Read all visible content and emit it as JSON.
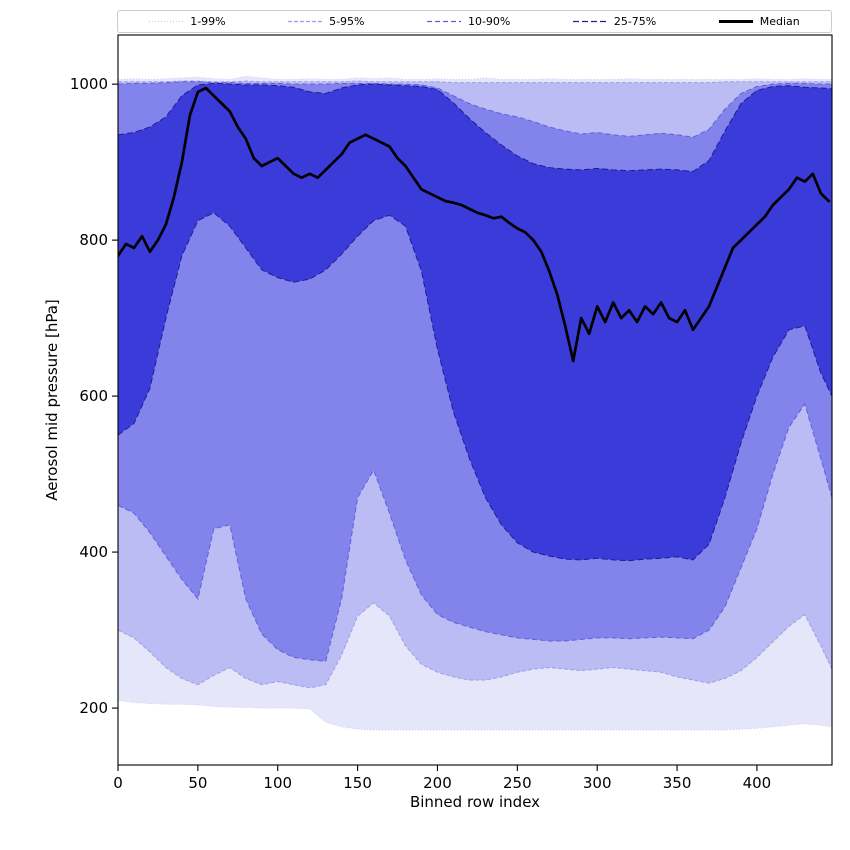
{
  "chart_data": {
    "type": "area",
    "title": "",
    "xlabel": "Binned row index",
    "ylabel": "Aerosol mid pressure [hPa]",
    "xlim": [
      0,
      447
    ],
    "ylim": [
      127,
      1063
    ],
    "xticks": [
      0,
      50,
      100,
      150,
      200,
      250,
      300,
      350,
      400
    ],
    "yticks": [
      200,
      400,
      600,
      800,
      1000
    ],
    "grid": false,
    "legend_position": "top",
    "x": [
      0,
      10,
      20,
      30,
      40,
      50,
      60,
      70,
      80,
      90,
      100,
      110,
      120,
      130,
      140,
      150,
      160,
      170,
      180,
      190,
      200,
      210,
      220,
      230,
      240,
      250,
      260,
      270,
      280,
      290,
      300,
      310,
      320,
      330,
      340,
      350,
      360,
      370,
      380,
      390,
      400,
      410,
      420,
      430,
      440,
      447
    ],
    "series": {
      "p01": [
        210,
        207,
        206,
        205,
        205,
        204,
        202,
        201,
        201,
        200,
        200,
        200,
        199,
        182,
        176,
        173,
        172,
        172,
        172,
        172,
        172,
        172,
        172,
        172,
        172,
        172,
        172,
        172,
        172,
        172,
        172,
        172,
        172,
        172,
        172,
        172,
        172,
        172,
        172,
        173,
        174,
        176,
        178,
        180,
        178,
        176
      ],
      "p05": [
        300,
        290,
        272,
        252,
        238,
        230,
        242,
        252,
        238,
        230,
        234,
        230,
        226,
        230,
        268,
        318,
        335,
        318,
        280,
        256,
        246,
        240,
        236,
        236,
        240,
        246,
        250,
        252,
        250,
        248,
        250,
        252,
        250,
        248,
        246,
        240,
        236,
        232,
        238,
        248,
        265,
        285,
        305,
        320,
        280,
        250
      ],
      "p10": [
        460,
        450,
        425,
        395,
        365,
        340,
        430,
        435,
        340,
        295,
        275,
        265,
        262,
        260,
        340,
        470,
        505,
        450,
        390,
        345,
        320,
        310,
        304,
        298,
        294,
        290,
        288,
        286,
        286,
        288,
        290,
        290,
        289,
        290,
        291,
        290,
        289,
        300,
        330,
        380,
        430,
        500,
        560,
        590,
        520,
        470
      ],
      "p25": [
        550,
        565,
        610,
        700,
        780,
        825,
        835,
        818,
        790,
        762,
        752,
        746,
        750,
        762,
        782,
        805,
        825,
        832,
        818,
        760,
        660,
        580,
        520,
        470,
        435,
        412,
        400,
        395,
        391,
        390,
        392,
        390,
        389,
        391,
        392,
        394,
        390,
        410,
        470,
        540,
        600,
        650,
        685,
        690,
        630,
        600
      ],
      "p75": [
        935,
        938,
        945,
        958,
        985,
        999,
        1001,
        1000,
        999,
        999,
        998,
        996,
        990,
        988,
        995,
        999,
        1000,
        999,
        998,
        997,
        993,
        976,
        956,
        938,
        922,
        908,
        898,
        893,
        891,
        890,
        892,
        890,
        889,
        890,
        891,
        890,
        888,
        902,
        940,
        975,
        992,
        997,
        998,
        996,
        995,
        994
      ],
      "p90": [
        1000,
        1001,
        1001,
        1002,
        1003,
        1003,
        1002,
        1002,
        1001,
        1001,
        1001,
        1000,
        1000,
        1000,
        1001,
        1001,
        1001,
        1000,
        1000,
        999,
        995,
        985,
        975,
        968,
        962,
        958,
        952,
        945,
        940,
        936,
        938,
        935,
        933,
        935,
        937,
        935,
        932,
        942,
        968,
        988,
        997,
        1000,
        1001,
        1001,
        1000,
        1000
      ],
      "p95": [
        1003,
        1003,
        1003,
        1003,
        1004,
        1004,
        1003,
        1003,
        1004,
        1003,
        1003,
        1003,
        1003,
        1003,
        1003,
        1004,
        1003,
        1003,
        1003,
        1003,
        1003,
        1002,
        1002,
        1002,
        1002,
        1002,
        1002,
        1002,
        1002,
        1002,
        1002,
        1002,
        1002,
        1002,
        1002,
        1002,
        1002,
        1002,
        1003,
        1003,
        1003,
        1003,
        1003,
        1003,
        1003,
        1003
      ],
      "p99": [
        1006,
        1007,
        1006,
        1007,
        1008,
        1009,
        1007,
        1006,
        1010,
        1008,
        1006,
        1006,
        1007,
        1006,
        1006,
        1008,
        1007,
        1008,
        1006,
        1006,
        1007,
        1006,
        1006,
        1008,
        1006,
        1006,
        1006,
        1007,
        1006,
        1006,
        1006,
        1006,
        1007,
        1006,
        1006,
        1006,
        1006,
        1006,
        1006,
        1006,
        1007,
        1006,
        1006,
        1007,
        1006,
        1006
      ]
    },
    "bands": [
      {
        "label": "1-99%",
        "lower": "p01",
        "upper": "p99",
        "fill": "#e6e6fa",
        "edge": "#c9c9ee",
        "dash": "1,2"
      },
      {
        "label": "5-95%",
        "lower": "p05",
        "upper": "p95",
        "fill": "#bcbcf4",
        "edge": "#9d9de6",
        "dash": "4,2"
      },
      {
        "label": "10-90%",
        "lower": "p10",
        "upper": "p90",
        "fill": "#8383ec",
        "edge": "#5e5ee0",
        "dash": "5,3"
      },
      {
        "label": "25-75%",
        "lower": "p25",
        "upper": "p75",
        "fill": "#3b3bda",
        "edge": "#1d1d94",
        "dash": "6,3"
      }
    ],
    "median": {
      "label": "Median",
      "color": "#000000",
      "width": 2.7,
      "x": [
        0,
        5,
        10,
        15,
        20,
        25,
        30,
        35,
        40,
        45,
        50,
        55,
        60,
        65,
        70,
        75,
        80,
        85,
        90,
        95,
        100,
        105,
        110,
        115,
        120,
        125,
        130,
        135,
        140,
        145,
        150,
        155,
        160,
        165,
        170,
        175,
        180,
        185,
        190,
        195,
        200,
        205,
        210,
        215,
        220,
        225,
        230,
        235,
        240,
        245,
        250,
        255,
        260,
        265,
        270,
        275,
        280,
        285,
        290,
        295,
        300,
        305,
        310,
        315,
        320,
        325,
        330,
        335,
        340,
        345,
        350,
        355,
        360,
        365,
        370,
        375,
        380,
        385,
        390,
        395,
        400,
        405,
        410,
        415,
        420,
        425,
        430,
        435,
        440,
        445
      ],
      "values": [
        780,
        795,
        790,
        805,
        785,
        800,
        820,
        855,
        900,
        960,
        990,
        995,
        985,
        975,
        965,
        945,
        930,
        905,
        895,
        900,
        905,
        895,
        885,
        880,
        885,
        880,
        890,
        900,
        910,
        925,
        930,
        935,
        930,
        925,
        920,
        905,
        895,
        880,
        865,
        860,
        855,
        850,
        848,
        845,
        840,
        835,
        832,
        828,
        830,
        822,
        815,
        810,
        800,
        785,
        760,
        730,
        690,
        645,
        700,
        680,
        715,
        695,
        720,
        700,
        710,
        695,
        715,
        705,
        720,
        700,
        695,
        710,
        685,
        700,
        715,
        740,
        765,
        790,
        800,
        810,
        820,
        830,
        845,
        855,
        865,
        880,
        875,
        885,
        860,
        850
      ]
    }
  }
}
